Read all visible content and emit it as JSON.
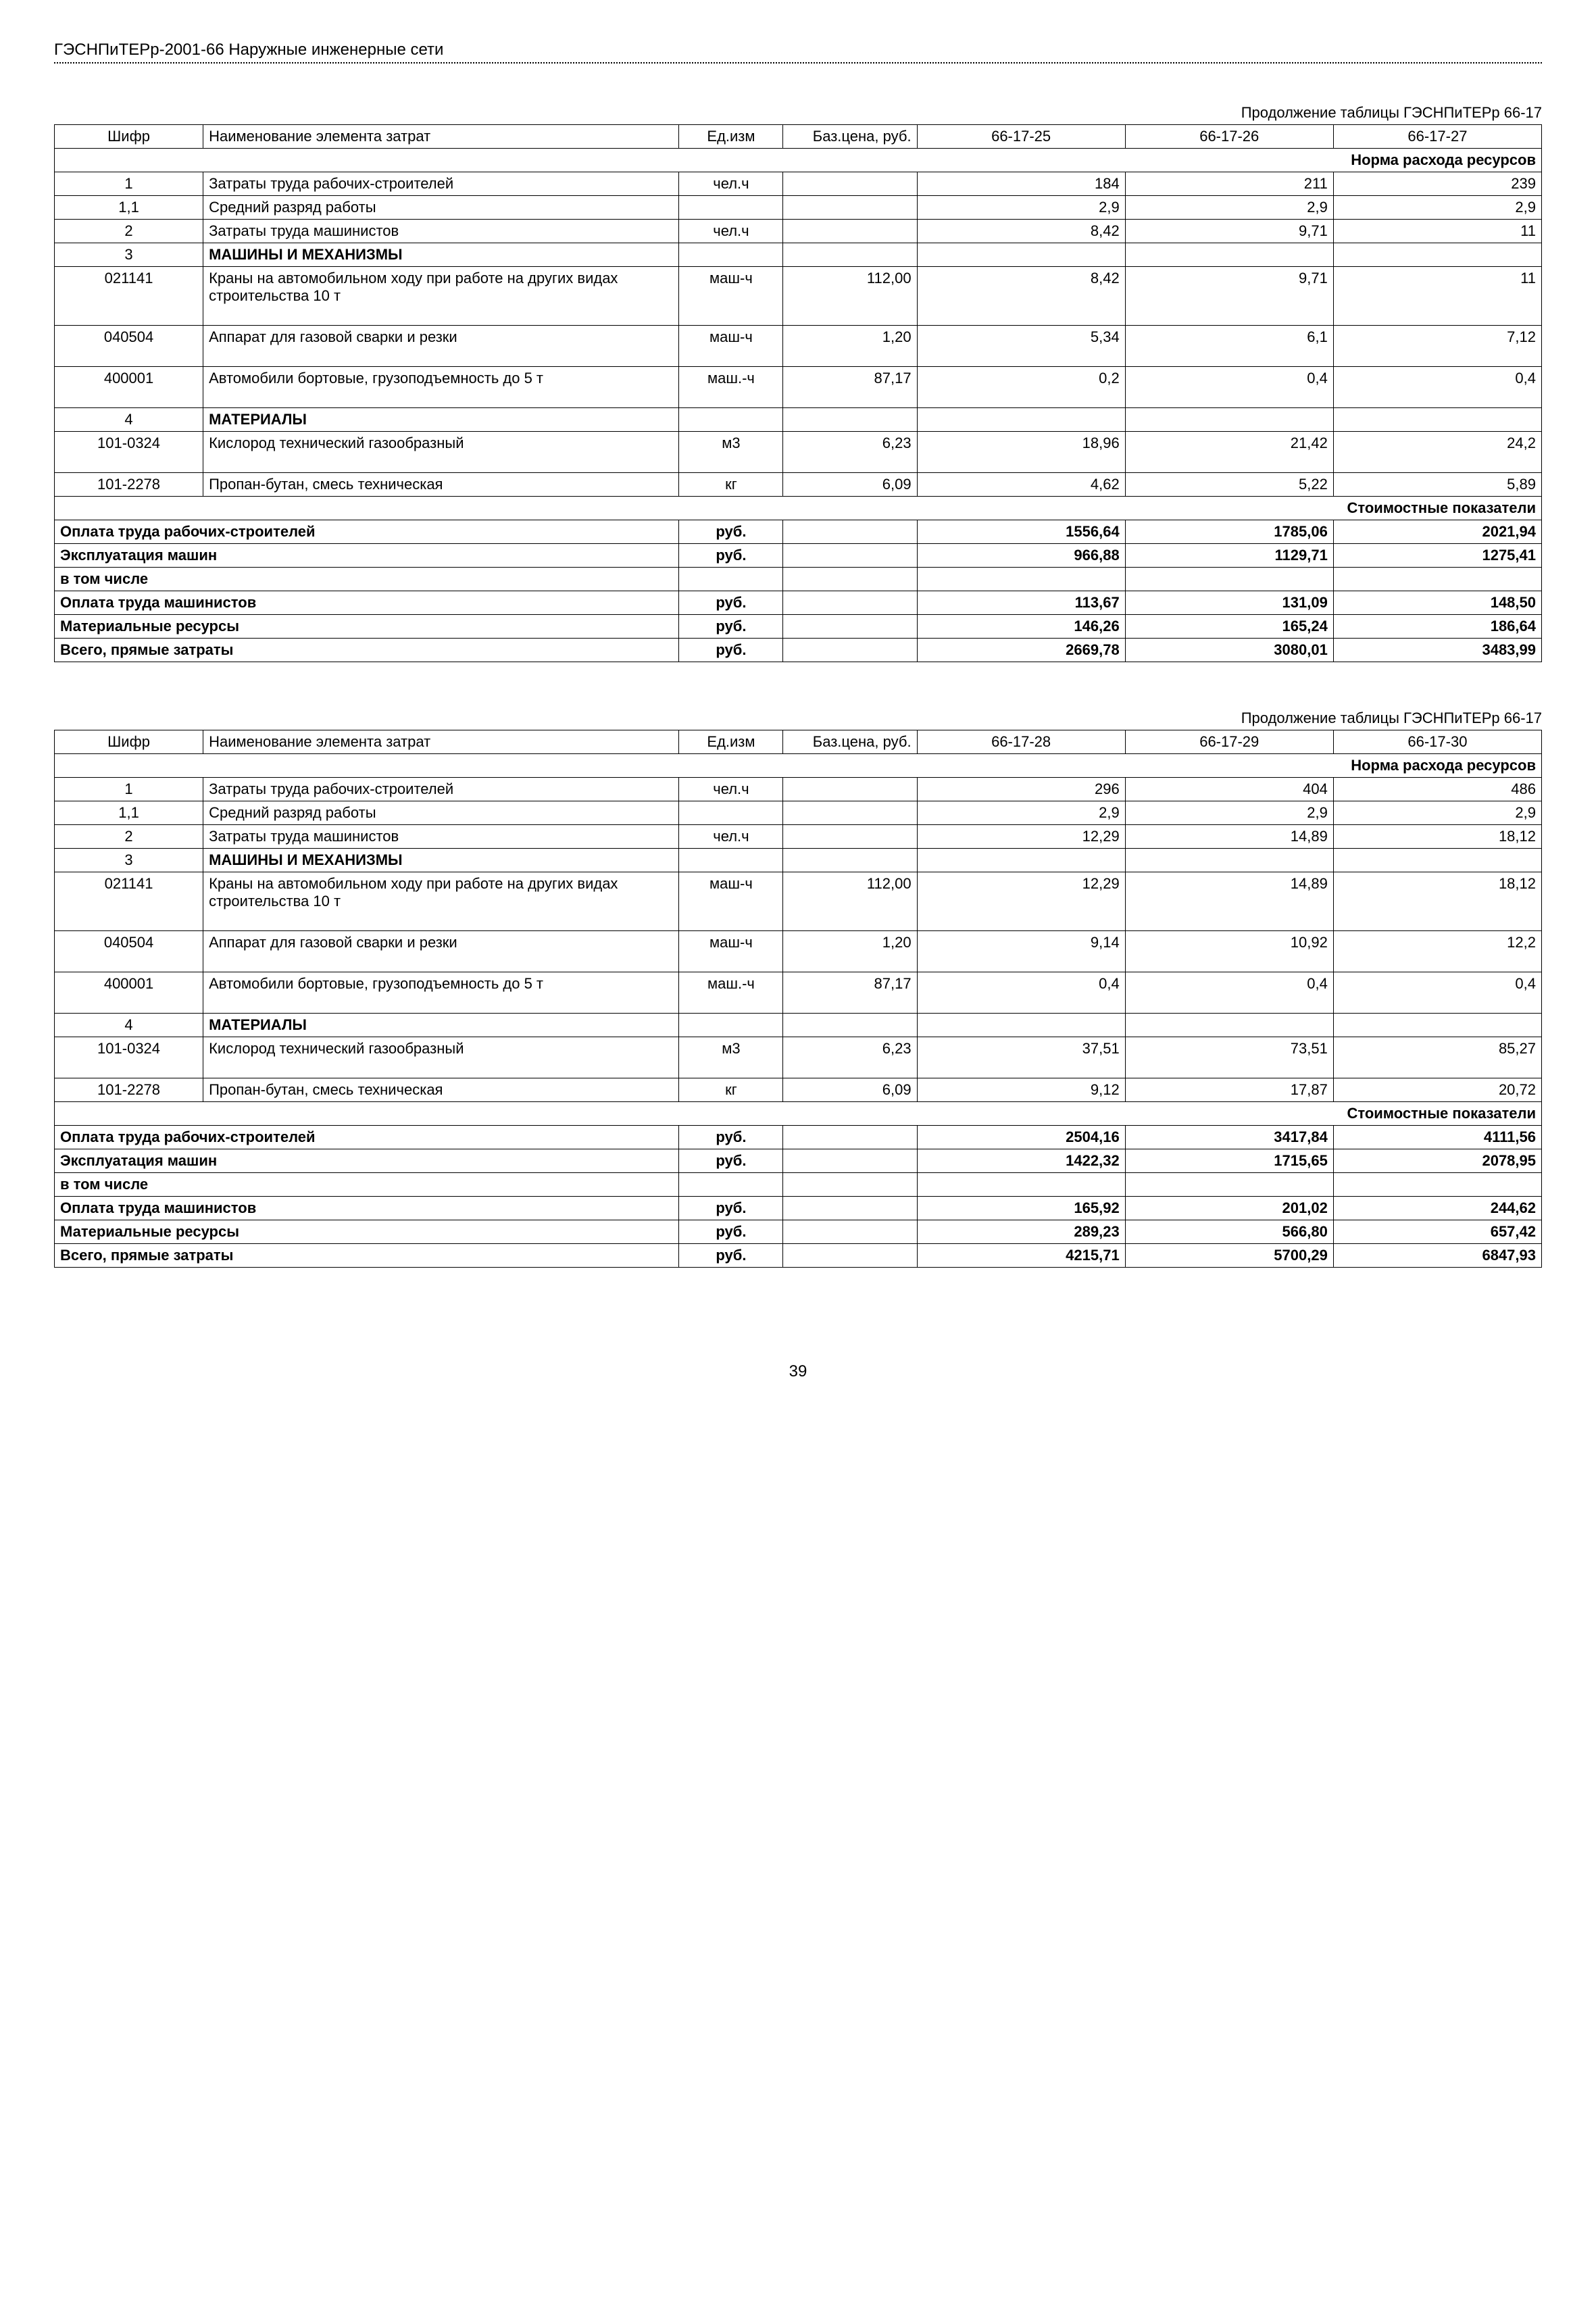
{
  "pageHeader": "ГЭСНПиТЕРр-2001-66 Наружные инженерные сети",
  "pageNumber": "39",
  "tableCaptionPrefix": "Продолжение таблицы ГЭСНПиТЕРр 66-17",
  "headers": {
    "code": "Шифр",
    "name": "Наименование элемента затрат",
    "unit": "Ед.изм",
    "basePrice": "Баз.цена, руб."
  },
  "sectionLabels": {
    "norma": "Норма расхода ресурсов",
    "stoim": "Стоимостные показатели"
  },
  "commonRows": [
    {
      "code": "1",
      "name": "Затраты труда рабочих-строителей",
      "unit": "чел.ч",
      "price": "",
      "bold": false
    },
    {
      "code": "1,1",
      "name": "Средний разряд работы",
      "unit": "",
      "price": "",
      "bold": false
    },
    {
      "code": "2",
      "name": "Затраты труда машинистов",
      "unit": "чел.ч",
      "price": "",
      "bold": false
    },
    {
      "code": "3",
      "name": "МАШИНЫ И МЕХАНИЗМЫ",
      "unit": "",
      "price": "",
      "bold": true
    },
    {
      "code": "021141",
      "name": "Краны на автомобильном ходу при работе на других видах строительства 10 т",
      "unit": "маш-ч",
      "price": "112,00",
      "bold": false,
      "tall": true
    },
    {
      "code": "040504",
      "name": "Аппарат для газовой сварки и резки",
      "unit": "маш-ч",
      "price": "1,20",
      "bold": false,
      "tall": true
    },
    {
      "code": "400001",
      "name": "Автомобили бортовые, грузоподъемность до 5 т",
      "unit": "маш.-ч",
      "price": "87,17",
      "bold": false,
      "tall": true
    },
    {
      "code": "4",
      "name": "МАТЕРИАЛЫ",
      "unit": "",
      "price": "",
      "bold": true
    },
    {
      "code": "101-0324",
      "name": "Кислород технический газообразный",
      "unit": "м3",
      "price": "6,23",
      "bold": false,
      "tall": true
    },
    {
      "code": "101-2278",
      "name": "Пропан-бутан, смесь техническая",
      "unit": "кг",
      "price": "6,09",
      "bold": false
    }
  ],
  "costRows": [
    {
      "name": "Оплата труда рабочих-строителей",
      "unit": "руб.",
      "bold": true
    },
    {
      "name": "Эксплуатация машин",
      "unit": "руб.",
      "bold": true
    },
    {
      "name": "в том числе",
      "unit": "",
      "bold": true
    },
    {
      "name": "Оплата труда машинистов",
      "unit": "руб.",
      "bold": true
    },
    {
      "name": "Материальные ресурсы",
      "unit": "руб.",
      "bold": true
    },
    {
      "name": "Всего, прямые затраты",
      "unit": "руб.",
      "bold": true
    }
  ],
  "tables": [
    {
      "cols": [
        "66-17-25",
        "66-17-26",
        "66-17-27"
      ],
      "values": [
        [
          "184",
          "211",
          "239"
        ],
        [
          "2,9",
          "2,9",
          "2,9"
        ],
        [
          "8,42",
          "9,71",
          "11"
        ],
        [
          "",
          "",
          ""
        ],
        [
          "8,42",
          "9,71",
          "11"
        ],
        [
          "5,34",
          "6,1",
          "7,12"
        ],
        [
          "0,2",
          "0,4",
          "0,4"
        ],
        [
          "",
          "",
          ""
        ],
        [
          "18,96",
          "21,42",
          "24,2"
        ],
        [
          "4,62",
          "5,22",
          "5,89"
        ]
      ],
      "costValues": [
        [
          "1556,64",
          "1785,06",
          "2021,94"
        ],
        [
          "966,88",
          "1129,71",
          "1275,41"
        ],
        [
          "",
          "",
          ""
        ],
        [
          "113,67",
          "131,09",
          "148,50"
        ],
        [
          "146,26",
          "165,24",
          "186,64"
        ],
        [
          "2669,78",
          "3080,01",
          "3483,99"
        ]
      ]
    },
    {
      "cols": [
        "66-17-28",
        "66-17-29",
        "66-17-30"
      ],
      "values": [
        [
          "296",
          "404",
          "486"
        ],
        [
          "2,9",
          "2,9",
          "2,9"
        ],
        [
          "12,29",
          "14,89",
          "18,12"
        ],
        [
          "",
          "",
          ""
        ],
        [
          "12,29",
          "14,89",
          "18,12"
        ],
        [
          "9,14",
          "10,92",
          "12,2"
        ],
        [
          "0,4",
          "0,4",
          "0,4"
        ],
        [
          "",
          "",
          ""
        ],
        [
          "37,51",
          "73,51",
          "85,27"
        ],
        [
          "9,12",
          "17,87",
          "20,72"
        ]
      ],
      "costValues": [
        [
          "2504,16",
          "3417,84",
          "4111,56"
        ],
        [
          "1422,32",
          "1715,65",
          "2078,95"
        ],
        [
          "",
          "",
          ""
        ],
        [
          "165,92",
          "201,02",
          "244,62"
        ],
        [
          "289,23",
          "566,80",
          "657,42"
        ],
        [
          "4215,71",
          "5700,29",
          "6847,93"
        ]
      ]
    }
  ]
}
